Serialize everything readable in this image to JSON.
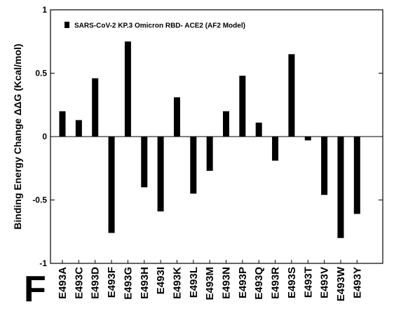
{
  "panel_label": "F",
  "chart_data": {
    "type": "bar",
    "title": "",
    "xlabel": "",
    "ylabel": "Binding  Energy Change ΔΔG (Kcal/mol)",
    "ylim": [
      -1,
      1
    ],
    "yticks": [
      {
        "value": 1,
        "label": "1"
      },
      {
        "value": 0.5,
        "label": "0.5"
      },
      {
        "value": 0,
        "label": "0"
      },
      {
        "value": -0.5,
        "label": "-0.5"
      },
      {
        "value": -1,
        "label": "-1"
      }
    ],
    "grid": false,
    "legend_position": "top-left",
    "bar_color": "#000000",
    "categories": [
      "E493A",
      "E493C",
      "E493D",
      "E493F",
      "E493G",
      "E493H",
      "E493I",
      "E493K",
      "E493L",
      "E493M",
      "E493N",
      "E493P",
      "E493Q",
      "E493R",
      "E493S",
      "E493T",
      "E493V",
      "E493W",
      "E493Y"
    ],
    "series": [
      {
        "name": "SARS-CoV-2  KP.3 Omicron RBD- ACE2 (AF2 Model)",
        "values": [
          0.2,
          0.13,
          0.46,
          -0.76,
          0.75,
          -0.4,
          -0.59,
          0.31,
          -0.45,
          -0.27,
          0.2,
          0.48,
          0.11,
          -0.19,
          0.65,
          -0.03,
          -0.46,
          -0.8,
          -0.61
        ]
      }
    ]
  }
}
